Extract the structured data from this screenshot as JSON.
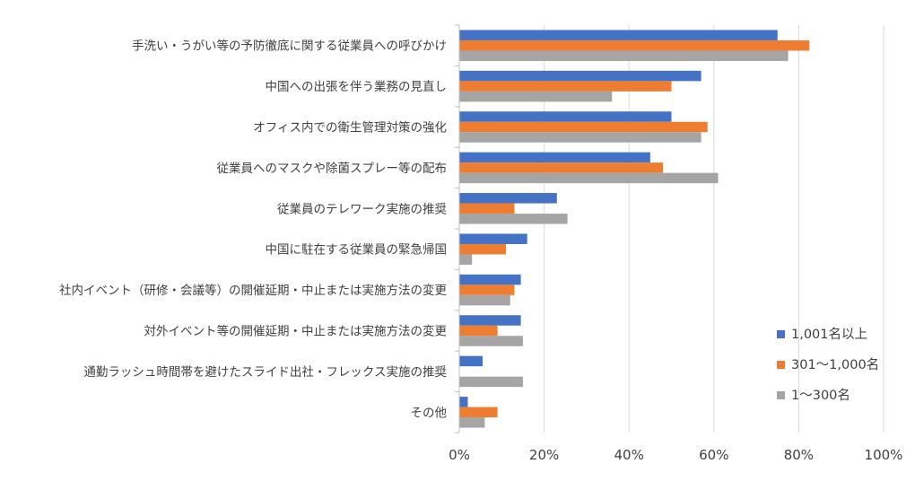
{
  "colors": {
    "series_0": "#4472C4",
    "series_1": "#ED7D31",
    "series_2": "#A5A5A5",
    "gridline": "#D9D9D9",
    "axis": "#BFBFBF",
    "text": "#404040"
  },
  "chart_data": {
    "type": "bar",
    "orientation": "horizontal",
    "title": "",
    "xlabel": "",
    "ylabel": "",
    "xlim": [
      0,
      100
    ],
    "grid": true,
    "legend_position": "bottom-right",
    "categories": [
      "手洗い・うがい等の予防徹底に関する従業員への呼びかけ",
      "中国への出張を伴う業務の見直し",
      "オフィス内での衛生管理対策の強化",
      "従業員へのマスクや除菌スプレー等の配布",
      "従業員のテレワーク実施の推奨",
      "中国に駐在する従業員の緊急帰国",
      "社内イベント（研修・会議等）の開催延期・中止または実施方法の変更",
      "対外イベント等の開催延期・中止または実施方法の変更",
      "通勤ラッシュ時間帯を避けたスライド出社・フレックス実施の推奨",
      "その他"
    ],
    "x_ticks": [
      "0%",
      "20%",
      "40%",
      "60%",
      "80%",
      "100%"
    ],
    "series": [
      {
        "name": "1,001名以上",
        "values": [
          75,
          57,
          50,
          45,
          23,
          16,
          14.5,
          14.5,
          5.5,
          2
        ]
      },
      {
        "name": "301～1,000名",
        "values": [
          82.5,
          50,
          58.5,
          48,
          13,
          11,
          13,
          9,
          0,
          9
        ]
      },
      {
        "name": "1～300名",
        "values": [
          77.5,
          36,
          57,
          61,
          25.5,
          3,
          12,
          15,
          15,
          6
        ]
      }
    ]
  }
}
